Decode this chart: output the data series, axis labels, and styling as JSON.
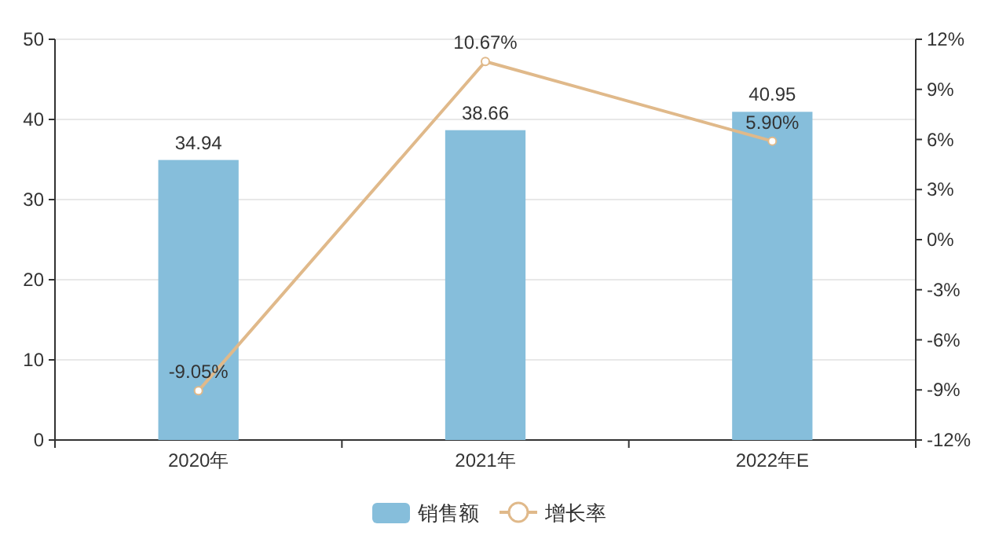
{
  "chart_data": {
    "type": "bar",
    "categories": [
      "2020年",
      "2021年",
      "2022年E"
    ],
    "series": [
      {
        "name": "销售额",
        "color": "#86bedb",
        "values": [
          34.94,
          38.66,
          40.95
        ],
        "value_labels": [
          "34.94",
          "38.66",
          "40.95"
        ]
      },
      {
        "name": "增长率",
        "type": "line",
        "axis": "y2",
        "color": "#e0b98a",
        "values": [
          -9.05,
          10.67,
          5.9
        ],
        "value_labels": [
          "-9.05%",
          "10.67%",
          "5.90%"
        ]
      }
    ],
    "ylim": [
      0,
      50
    ],
    "yticks": [
      0,
      10,
      20,
      30,
      40,
      50
    ],
    "y2lim": [
      -12,
      12
    ],
    "y2ticks": [
      {
        "value": -12,
        "label": "-12%"
      },
      {
        "value": -9,
        "label": "-9%"
      },
      {
        "value": -6,
        "label": "-6%"
      },
      {
        "value": -3,
        "label": "-3%"
      },
      {
        "value": 0,
        "label": "0%"
      },
      {
        "value": 3,
        "label": "3%"
      },
      {
        "value": 6,
        "label": "6%"
      },
      {
        "value": 9,
        "label": "9%"
      },
      {
        "value": 12,
        "label": "12%"
      }
    ],
    "grid": "y",
    "legend": "bottom",
    "marker": "circle"
  }
}
